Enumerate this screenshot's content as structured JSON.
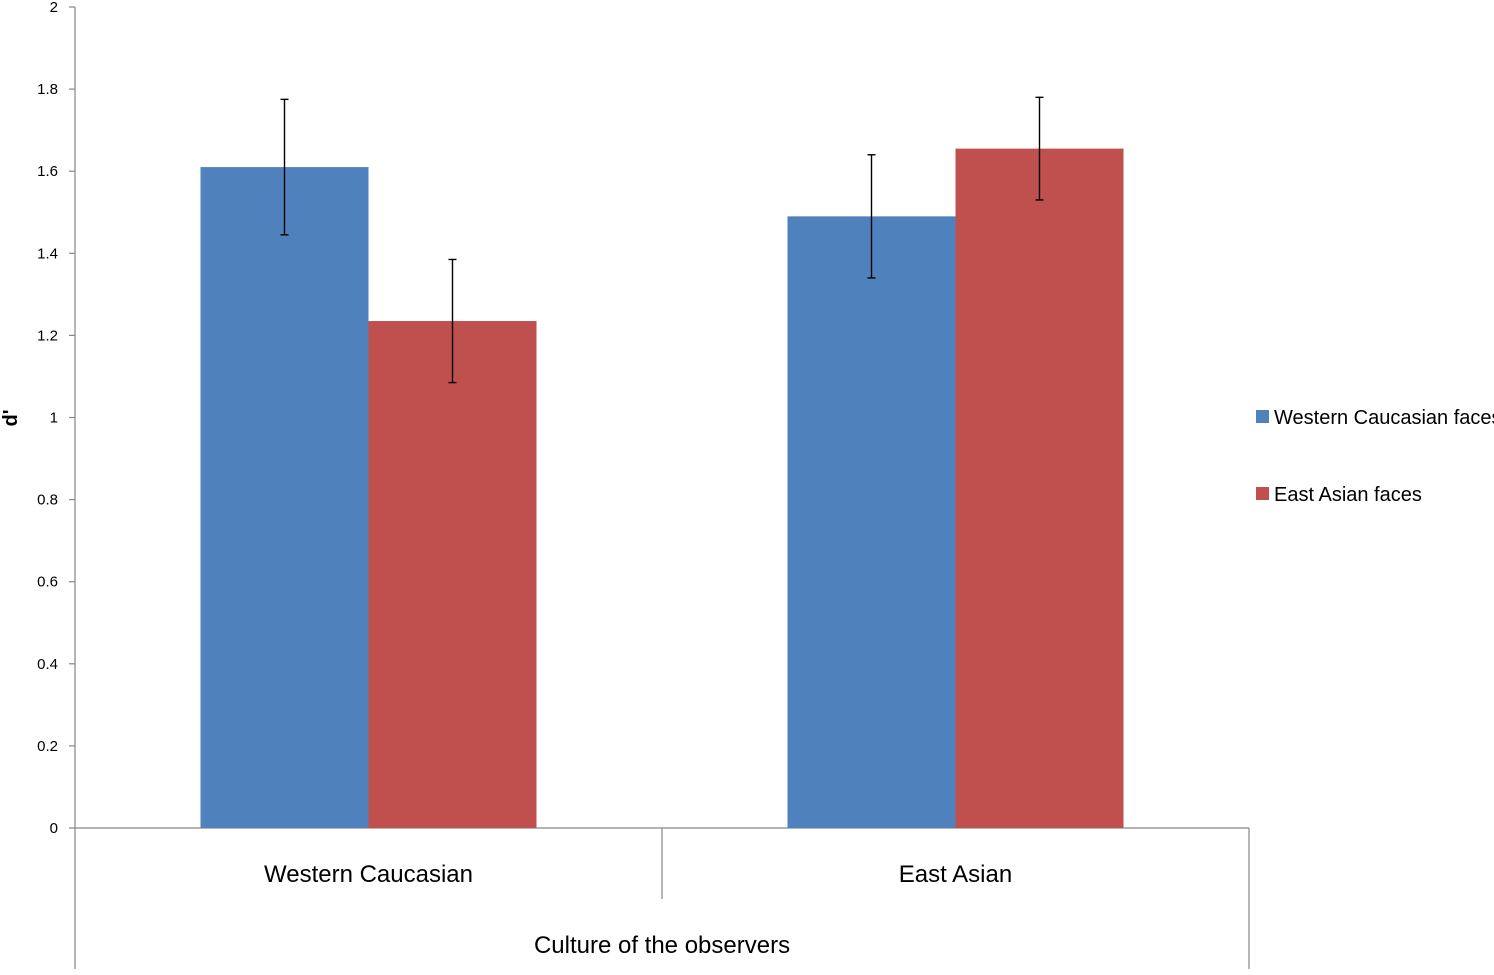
{
  "chart_data": {
    "type": "bar",
    "categories": [
      "Western Caucasian",
      "East Asian"
    ],
    "series": [
      {
        "name": "Western Caucasian faces",
        "values": [
          1.61,
          1.49
        ],
        "error": [
          0.165,
          0.15
        ],
        "color": "#4F81BD"
      },
      {
        "name": "East Asian faces",
        "values": [
          1.235,
          1.655
        ],
        "error": [
          0.15,
          0.125
        ],
        "color": "#C0504D"
      }
    ],
    "xlabel": "Culture of the observers",
    "ylabel": "d'",
    "ylim": [
      0,
      2
    ],
    "yticks": [
      "0",
      "0.2",
      "0.4",
      "0.6",
      "0.8",
      "1",
      "1.2",
      "1.4",
      "1.6",
      "1.8",
      "2"
    ],
    "grid": false,
    "legend_position": "right"
  }
}
